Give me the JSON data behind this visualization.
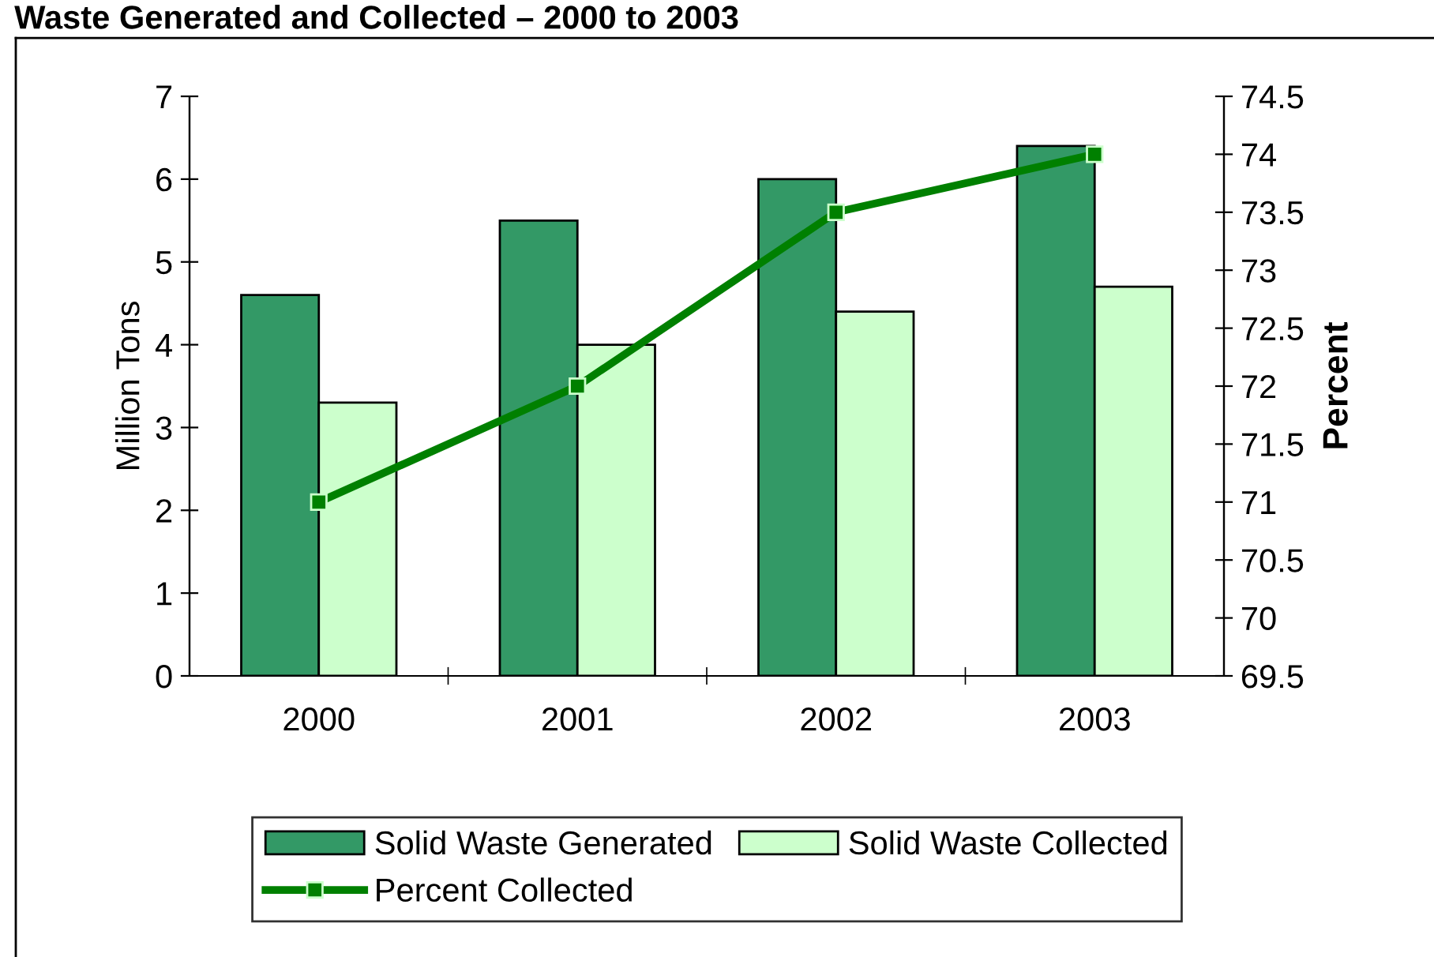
{
  "chart_data": {
    "type": "bar",
    "title": "Waste Generated and Collected – 2000 to 2003",
    "categories": [
      "2000",
      "2001",
      "2002",
      "2003"
    ],
    "series": [
      {
        "name": "Solid Waste Generated",
        "color": "#339966",
        "values": [
          4.6,
          5.5,
          6.0,
          6.4
        ]
      },
      {
        "name": "Solid Waste Collected",
        "color": "#ccffcc",
        "values": [
          3.3,
          4.0,
          4.4,
          4.7
        ]
      },
      {
        "name": "Percent Collected",
        "type": "line",
        "axis": "y2",
        "color": "#008000",
        "marker": "square",
        "values": [
          71,
          72,
          73.5,
          74
        ]
      }
    ],
    "ylabel": "Million Tons",
    "y2label": "Percent",
    "ylim": [
      0,
      7
    ],
    "yticks": [
      0,
      1,
      2,
      3,
      4,
      5,
      6,
      7
    ],
    "y2lim": [
      69.5,
      74.5
    ],
    "y2ticks": [
      69.5,
      70,
      70.5,
      71,
      71.5,
      72,
      72.5,
      73,
      73.5,
      74,
      74.5
    ],
    "legend": "bottom",
    "grid": false
  }
}
